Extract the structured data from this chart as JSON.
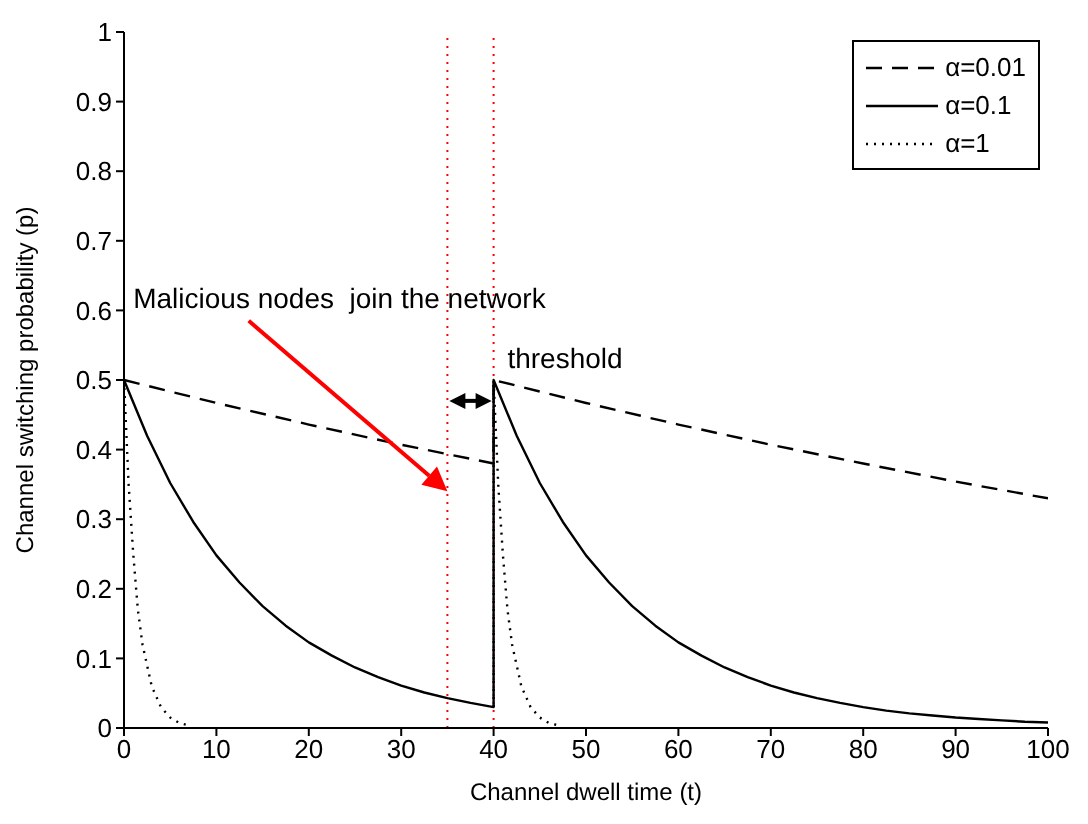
{
  "chart_data": {
    "type": "line",
    "xlabel": "Channel dwell time (t)",
    "ylabel": "Channel switching probability (p)",
    "xlim": [
      0,
      100
    ],
    "xticks": [
      0,
      10,
      20,
      30,
      40,
      50,
      60,
      70,
      80,
      90,
      100
    ],
    "ylim": [
      0,
      1
    ],
    "yticks": [
      0,
      0.1,
      0.2,
      0.3,
      0.4,
      0.5,
      0.6,
      0.7,
      0.8,
      0.9,
      1
    ],
    "grid": false,
    "legend": "top right",
    "marker": "none",
    "series": [
      {
        "name": "α=0.01",
        "color": "#000000",
        "line_style": "dashed",
        "x": [
          0,
          10,
          20,
          30,
          40,
          40,
          50,
          60,
          70,
          80,
          90,
          100
        ],
        "values": [
          0.5,
          0.467,
          0.436,
          0.407,
          0.38,
          0.5,
          0.467,
          0.436,
          0.407,
          0.38,
          0.354,
          0.33
        ]
      },
      {
        "name": "α=0.1",
        "color": "#000000",
        "line_style": "solid",
        "x": [
          0,
          2.5,
          5,
          7.5,
          10,
          12.5,
          15,
          17.5,
          20,
          22.5,
          25,
          27.5,
          30,
          32.5,
          35,
          37.5,
          40,
          40,
          42.5,
          45,
          47.5,
          50,
          52.5,
          55,
          57.5,
          60,
          62.5,
          65,
          67.5,
          70,
          72.5,
          75,
          77.5,
          80,
          82.5,
          85,
          87.5,
          90,
          92.5,
          95,
          97.5,
          100
        ],
        "values": [
          0.5,
          0.42,
          0.352,
          0.296,
          0.248,
          0.209,
          0.175,
          0.147,
          0.123,
          0.104,
          0.087,
          0.073,
          0.061,
          0.051,
          0.043,
          0.036,
          0.03,
          0.5,
          0.42,
          0.352,
          0.296,
          0.248,
          0.209,
          0.175,
          0.147,
          0.123,
          0.104,
          0.087,
          0.073,
          0.061,
          0.051,
          0.043,
          0.036,
          0.03,
          0.025,
          0.021,
          0.018,
          0.015,
          0.013,
          0.011,
          0.009,
          0.008
        ]
      },
      {
        "name": "α=1",
        "color": "#000000",
        "line_style": "dotted",
        "x": [
          0,
          0.5,
          1,
          1.5,
          2,
          3,
          4,
          5,
          6,
          7,
          20,
          40,
          40,
          40.5,
          41,
          41.5,
          42,
          43,
          44,
          45,
          46,
          47
        ],
        "values": [
          0.5,
          0.35,
          0.25,
          0.17,
          0.12,
          0.06,
          0.03,
          0.015,
          0.007,
          0.004,
          null,
          0.03,
          0.5,
          0.35,
          0.25,
          0.17,
          0.12,
          0.06,
          0.03,
          0.015,
          0.007,
          0.004
        ]
      }
    ],
    "ref_lines": [
      {
        "axis": "x",
        "value": 35,
        "label": null,
        "color": "#ff0000",
        "line_style": "dotted"
      },
      {
        "axis": "x",
        "value": 40,
        "label": null,
        "color": "#ff0000",
        "line_style": "dotted"
      }
    ],
    "annotations": [
      "Malicious nodes  join the network",
      "threshold"
    ]
  }
}
